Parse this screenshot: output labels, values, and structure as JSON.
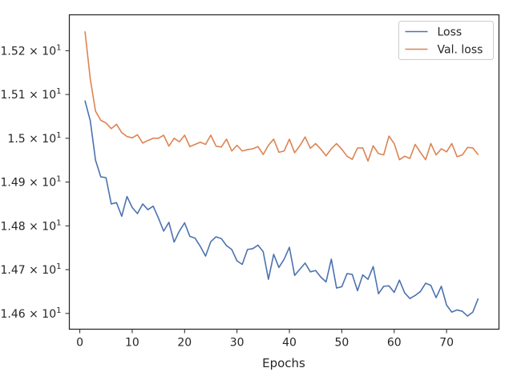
{
  "chart_data": {
    "type": "line",
    "title": "",
    "xlabel": "Epochs",
    "ylabel": "",
    "xlim": [
      -2,
      80
    ],
    "ylim": [
      14.564,
      15.282
    ],
    "x_ticks": [
      0,
      10,
      20,
      30,
      40,
      50,
      60,
      70
    ],
    "x_tick_labels": [
      "0",
      "10",
      "20",
      "30",
      "40",
      "50",
      "60",
      "70"
    ],
    "y_ticks": [
      14.6,
      14.7,
      14.8,
      14.9,
      15.0,
      15.1,
      15.2
    ],
    "y_tick_labels": [
      {
        "mantissa": "1.46",
        "exponent": "1"
      },
      {
        "mantissa": "1.47",
        "exponent": "1"
      },
      {
        "mantissa": "1.48",
        "exponent": "1"
      },
      {
        "mantissa": "1.49",
        "exponent": "1"
      },
      {
        "mantissa": "1.5",
        "exponent": "1"
      },
      {
        "mantissa": "1.51",
        "exponent": "1"
      },
      {
        "mantissa": "1.52",
        "exponent": "1"
      }
    ],
    "grid": false,
    "legend_position": "top-right",
    "x": [
      1,
      2,
      3,
      4,
      5,
      6,
      7,
      8,
      9,
      10,
      11,
      12,
      13,
      14,
      15,
      16,
      17,
      18,
      19,
      20,
      21,
      22,
      23,
      24,
      25,
      26,
      27,
      28,
      29,
      30,
      31,
      32,
      33,
      34,
      35,
      36,
      37,
      38,
      39,
      40,
      41,
      42,
      43,
      44,
      45,
      46,
      47,
      48,
      49,
      50,
      51,
      52,
      53,
      54,
      55,
      56,
      57,
      58,
      59,
      60,
      61,
      62,
      63,
      64,
      65,
      66,
      67,
      68,
      69,
      70,
      71,
      72,
      73,
      74,
      75,
      76
    ],
    "series": [
      {
        "name": "Loss",
        "color": "#4c72b0",
        "values": [
          15.085,
          15.04,
          14.95,
          14.912,
          14.91,
          14.85,
          14.853,
          14.822,
          14.867,
          14.842,
          14.828,
          14.85,
          14.837,
          14.845,
          14.818,
          14.788,
          14.808,
          14.763,
          14.788,
          14.807,
          14.776,
          14.772,
          14.753,
          14.731,
          14.764,
          14.775,
          14.771,
          14.755,
          14.746,
          14.72,
          14.712,
          14.746,
          14.748,
          14.756,
          14.741,
          14.678,
          14.735,
          14.705,
          14.724,
          14.751,
          14.687,
          14.701,
          14.715,
          14.695,
          14.698,
          14.683,
          14.672,
          14.724,
          14.658,
          14.661,
          14.691,
          14.689,
          14.652,
          14.688,
          14.678,
          14.707,
          14.645,
          14.662,
          14.663,
          14.648,
          14.676,
          14.647,
          14.634,
          14.641,
          14.65,
          14.669,
          14.664,
          14.636,
          14.662,
          14.619,
          14.603,
          14.608,
          14.605,
          14.594,
          14.603,
          14.633
        ]
      },
      {
        "name": "Val. loss",
        "color": "#dd8452",
        "values": [
          15.243,
          15.135,
          15.062,
          15.041,
          15.035,
          15.022,
          15.032,
          15.013,
          15.004,
          15.001,
          15.008,
          14.989,
          14.995,
          15.0,
          15.0,
          15.007,
          14.982,
          15.0,
          14.992,
          15.007,
          14.981,
          14.986,
          14.991,
          14.986,
          15.007,
          14.982,
          14.98,
          14.998,
          14.971,
          14.984,
          14.971,
          14.974,
          14.976,
          14.981,
          14.963,
          14.984,
          14.998,
          14.968,
          14.971,
          14.998,
          14.967,
          14.983,
          15.003,
          14.977,
          14.988,
          14.975,
          14.96,
          14.976,
          14.988,
          14.975,
          14.959,
          14.952,
          14.978,
          14.978,
          14.948,
          14.983,
          14.965,
          14.962,
          15.005,
          14.988,
          14.951,
          14.959,
          14.954,
          14.986,
          14.968,
          14.951,
          14.988,
          14.962,
          14.976,
          14.969,
          14.988,
          14.958,
          14.962,
          14.979,
          14.978,
          14.963
        ]
      }
    ]
  }
}
